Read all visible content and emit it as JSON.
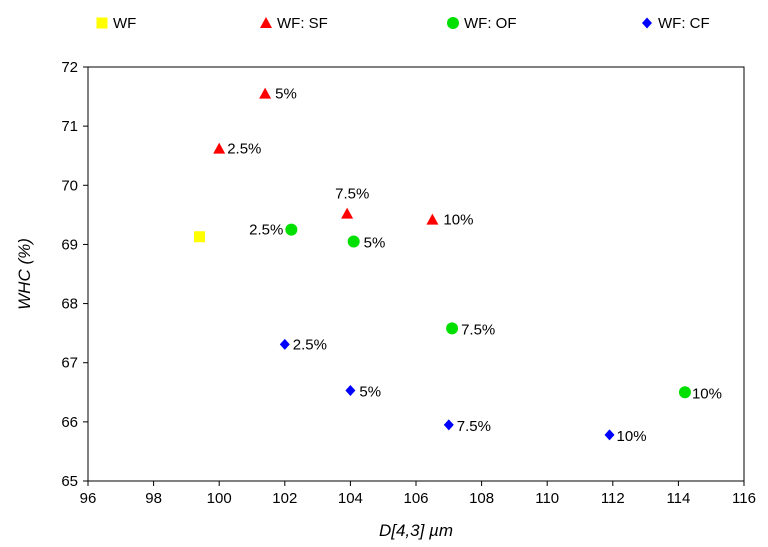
{
  "chart_data": {
    "type": "scatter",
    "title": "",
    "xlabel": "D[4,3] µm",
    "ylabel": "WHC (%)",
    "xlim": [
      96,
      116
    ],
    "ylim": [
      65,
      72
    ],
    "xticks": [
      "96",
      "98",
      "100",
      "102",
      "104",
      "106",
      "108",
      "110",
      "112",
      "114",
      "116"
    ],
    "yticks": [
      "65",
      "66",
      "67",
      "68",
      "69",
      "70",
      "71",
      "72"
    ],
    "grid": false,
    "legend_position": "top",
    "series": [
      {
        "name": "WF",
        "marker": "square",
        "color": "#FFFF00",
        "points": [
          {
            "x": 99.4,
            "y": 69.13,
            "label": ""
          }
        ]
      },
      {
        "name": "WF: SF",
        "marker": "triangle",
        "color": "#FF0000",
        "points": [
          {
            "x": 101.4,
            "y": 71.55,
            "label": "5%"
          },
          {
            "x": 100.0,
            "y": 70.62,
            "label": "2.5%"
          },
          {
            "x": 103.9,
            "y": 69.52,
            "label": "7.5%"
          },
          {
            "x": 106.5,
            "y": 69.42,
            "label": "10%"
          }
        ]
      },
      {
        "name": "WF: OF",
        "marker": "circle",
        "color": "#00E000",
        "points": [
          {
            "x": 102.2,
            "y": 69.25,
            "label": "2.5%"
          },
          {
            "x": 104.1,
            "y": 69.05,
            "label": "5%"
          },
          {
            "x": 107.1,
            "y": 67.58,
            "label": "7.5%"
          },
          {
            "x": 114.2,
            "y": 66.5,
            "label": "10%"
          }
        ]
      },
      {
        "name": "WF: CF",
        "marker": "diamond",
        "color": "#0000FF",
        "points": [
          {
            "x": 102.0,
            "y": 67.31,
            "label": "2.5%"
          },
          {
            "x": 104.0,
            "y": 66.53,
            "label": "5%"
          },
          {
            "x": 107.0,
            "y": 65.95,
            "label": "7.5%"
          },
          {
            "x": 111.9,
            "y": 65.78,
            "label": "10%"
          }
        ]
      }
    ]
  }
}
